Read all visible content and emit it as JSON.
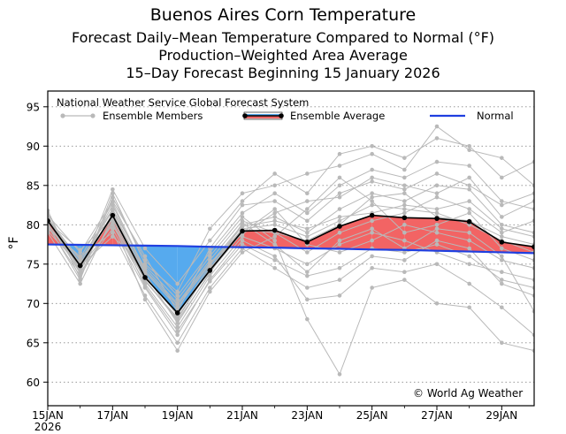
{
  "header": {
    "title": "Buenos Aires Corn Temperature",
    "subtitle1": "Forecast Daily–Mean Temperature Compared to Normal (°F)",
    "subtitle2": "Production–Weighted Area Average",
    "subtitle3": "15–Day Forecast Beginning 15 January 2026"
  },
  "legend": {
    "source": "National Weather Service Global Forecast System",
    "members_label": "Ensemble Members",
    "average_label": "Ensemble Average",
    "normal_label": "Normal"
  },
  "copyright": "© World Ag Weather",
  "colors": {
    "above_fill": "#f26464",
    "below_fill": "#56aaee",
    "normal_line": "#1f3fe0",
    "members": "#b9b9b9",
    "average": "#000000"
  },
  "chart_data": {
    "type": "line",
    "ylabel": "°F",
    "ylim": [
      57,
      97
    ],
    "xlim": [
      0,
      15
    ],
    "grid": "horizontal dotted",
    "legend_position": "top",
    "x_ticks": [
      {
        "x": 0,
        "label": "15JAN",
        "sublabel": "2026"
      },
      {
        "x": 2,
        "label": "17JAN"
      },
      {
        "x": 4,
        "label": "19JAN"
      },
      {
        "x": 6,
        "label": "21JAN"
      },
      {
        "x": 8,
        "label": "23JAN"
      },
      {
        "x": 10,
        "label": "25JAN"
      },
      {
        "x": 12,
        "label": "27JAN"
      },
      {
        "x": 14,
        "label": "29JAN"
      }
    ],
    "y_ticks": [
      60,
      65,
      70,
      75,
      80,
      85,
      90,
      95
    ],
    "x": [
      0,
      1,
      2,
      3,
      4,
      5,
      6,
      7,
      8,
      9,
      10,
      11,
      12,
      13,
      14,
      15
    ],
    "series": [
      {
        "name": "Ensemble Average",
        "values": [
          80.5,
          74.8,
          81.2,
          73.3,
          68.8,
          74.2,
          79.2,
          79.3,
          77.8,
          79.8,
          81.2,
          80.9,
          80.8,
          80.4,
          77.8,
          77.2
        ]
      },
      {
        "name": "Normal",
        "values": [
          77.5,
          77.45,
          77.4,
          77.35,
          77.3,
          77.2,
          77.15,
          77.1,
          77.0,
          76.95,
          76.85,
          76.8,
          76.7,
          76.6,
          76.5,
          76.4
        ]
      }
    ],
    "ensemble_members": [
      [
        81.0,
        75.0,
        82.5,
        74.0,
        69.5,
        75.0,
        80.0,
        81.0,
        79.0,
        82.0,
        84.0,
        83.0,
        85.0,
        84.5,
        80.0,
        79.0
      ],
      [
        80.5,
        74.5,
        80.0,
        72.5,
        67.0,
        73.5,
        78.5,
        77.0,
        75.0,
        77.5,
        79.0,
        78.0,
        76.5,
        75.0,
        74.0,
        73.0
      ],
      [
        80.0,
        73.0,
        83.5,
        75.5,
        71.0,
        76.5,
        81.5,
        84.0,
        81.5,
        85.0,
        87.0,
        86.0,
        88.0,
        87.5,
        83.0,
        82.0
      ],
      [
        79.5,
        76.0,
        79.0,
        71.0,
        65.0,
        72.0,
        77.0,
        74.5,
        72.0,
        73.0,
        76.0,
        75.5,
        78.0,
        77.0,
        72.5,
        71.0
      ],
      [
        81.5,
        74.0,
        84.5,
        77.0,
        72.5,
        78.0,
        83.0,
        86.5,
        84.0,
        89.0,
        90.0,
        88.5,
        91.0,
        90.0,
        86.0,
        88.0
      ],
      [
        79.0,
        72.5,
        81.0,
        73.0,
        68.0,
        74.5,
        79.5,
        80.0,
        78.5,
        80.5,
        82.5,
        82.0,
        81.5,
        80.0,
        78.0,
        76.5
      ],
      [
        80.8,
        75.5,
        82.0,
        74.5,
        70.0,
        75.5,
        80.5,
        79.0,
        76.5,
        79.0,
        80.5,
        81.5,
        83.5,
        82.0,
        79.0,
        80.5
      ],
      [
        80.2,
        74.0,
        79.5,
        72.0,
        66.0,
        73.0,
        78.0,
        76.0,
        70.5,
        71.0,
        74.5,
        74.0,
        75.0,
        72.5,
        69.5,
        66.0
      ],
      [
        81.2,
        76.5,
        83.0,
        76.0,
        69.0,
        77.0,
        82.5,
        83.0,
        80.5,
        84.0,
        85.5,
        84.5,
        86.5,
        85.0,
        82.5,
        84.0
      ],
      [
        79.8,
        73.5,
        80.5,
        70.5,
        64.0,
        71.5,
        76.5,
        78.5,
        82.0,
        86.0,
        83.0,
        79.0,
        80.0,
        81.5,
        77.0,
        75.5
      ],
      [
        80.6,
        75.2,
        81.8,
        73.8,
        67.5,
        74.0,
        79.0,
        82.0,
        77.5,
        76.5,
        78.0,
        80.0,
        79.0,
        78.0,
        75.5,
        74.5
      ],
      [
        79.2,
        74.8,
        78.5,
        74.8,
        70.5,
        76.0,
        81.0,
        78.0,
        68.0,
        61.0,
        72.0,
        73.0,
        70.0,
        69.5,
        65.0,
        64.0
      ],
      [
        81.8,
        73.2,
        84.0,
        75.0,
        71.5,
        79.5,
        84.0,
        85.0,
        86.5,
        87.5,
        89.0,
        87.0,
        92.5,
        89.5,
        88.5,
        85.0
      ],
      [
        80.4,
        76.8,
        80.8,
        72.2,
        66.5,
        72.8,
        77.5,
        75.5,
        73.5,
        74.5,
        77.0,
        76.5,
        77.5,
        76.0,
        73.0,
        72.0
      ],
      [
        80.9,
        74.2,
        81.5,
        73.5,
        68.5,
        74.8,
        79.8,
        80.5,
        79.5,
        81.0,
        81.5,
        82.5,
        82.0,
        83.0,
        79.5,
        78.5
      ],
      [
        79.6,
        75.8,
        82.8,
        74.2,
        69.8,
        75.2,
        78.8,
        81.5,
        83.0,
        83.5,
        86.0,
        85.0,
        84.0,
        86.0,
        81.0,
        83.0
      ],
      [
        80.7,
        73.8,
        80.2,
        73.0,
        67.8,
        73.8,
        80.2,
        77.5,
        74.0,
        78.0,
        79.5,
        77.0,
        79.5,
        79.0,
        76.0,
        69.0
      ],
      [
        80.1,
        74.6,
        81.0,
        72.8,
        68.2,
        74.4,
        79.4,
        79.0,
        78.0,
        80.0,
        83.5,
        84.0,
        81.0,
        80.5,
        78.5,
        77.5
      ]
    ]
  }
}
